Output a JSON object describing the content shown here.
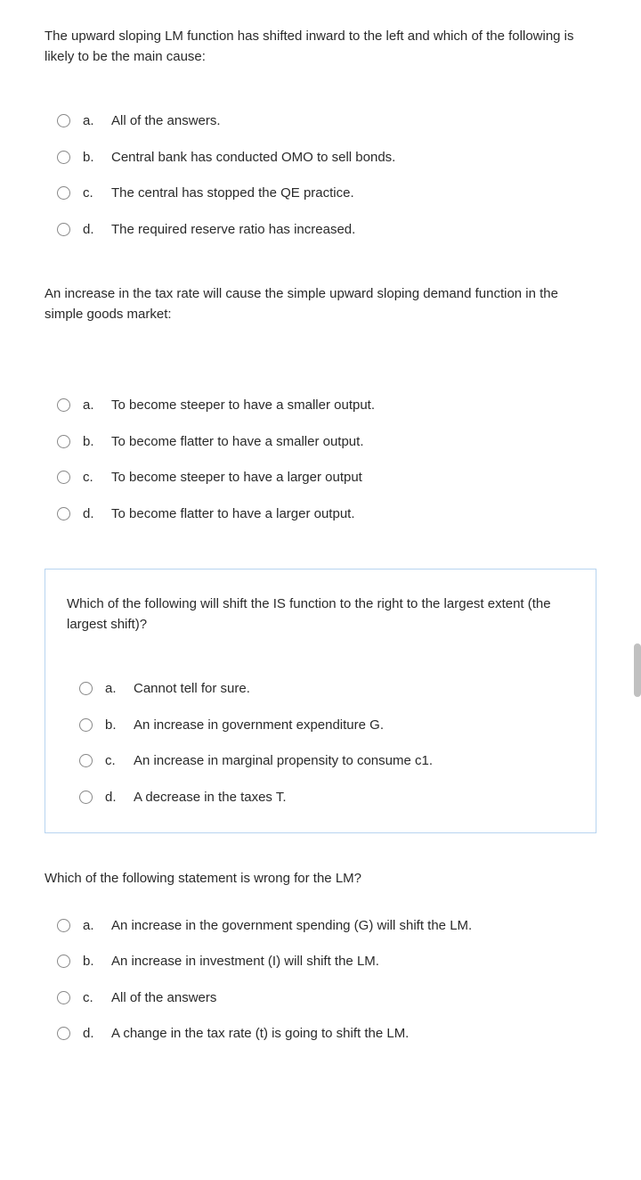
{
  "colors": {
    "text": "#2a2a2a",
    "radio_border": "#888888",
    "box_border": "#b8d4f0",
    "background": "#ffffff",
    "scrollbar": "#c0c0c0"
  },
  "typography": {
    "font_size": 15,
    "line_height": 1.5,
    "font_family": "Segoe UI"
  },
  "questions": [
    {
      "prompt": "The upward sloping LM function has shifted inward to the left and which of the following is likely to be the main cause:",
      "options": [
        {
          "letter": "a.",
          "text": "All of the answers."
        },
        {
          "letter": "b.",
          "text": "Central bank has conducted OMO to sell bonds."
        },
        {
          "letter": "c.",
          "text": "The central has stopped the QE practice."
        },
        {
          "letter": "d.",
          "text": "The required reserve ratio has increased."
        }
      ]
    },
    {
      "prompt": "An increase in the tax rate will cause the simple upward sloping demand function in the simple goods market:",
      "options": [
        {
          "letter": "a.",
          "text": "To become steeper to have a smaller output."
        },
        {
          "letter": "b.",
          "text": "To become flatter to have a smaller output."
        },
        {
          "letter": "c.",
          "text": "To become steeper to have a larger output"
        },
        {
          "letter": "d.",
          "text": "To become flatter to have a larger output."
        }
      ]
    },
    {
      "prompt": "Which of the following will shift the IS function to the right to the largest extent (the largest shift)?",
      "options": [
        {
          "letter": "a.",
          "text": "Cannot tell for sure."
        },
        {
          "letter": "b.",
          "text": "An increase in government expenditure G."
        },
        {
          "letter": "c.",
          "text": "An increase in marginal propensity to consume c1."
        },
        {
          "letter": "d.",
          "text": "A decrease in the taxes T."
        }
      ]
    },
    {
      "prompt": "Which of the following statement is wrong for the LM?",
      "options": [
        {
          "letter": "a.",
          "text": "An increase in the government spending (G) will shift the LM."
        },
        {
          "letter": "b.",
          "text": "An increase in investment (I) will shift the LM."
        },
        {
          "letter": "c.",
          "text": "All of the answers"
        },
        {
          "letter": "d.",
          "text": "A change in the tax rate (t) is going to shift the LM."
        }
      ]
    }
  ]
}
